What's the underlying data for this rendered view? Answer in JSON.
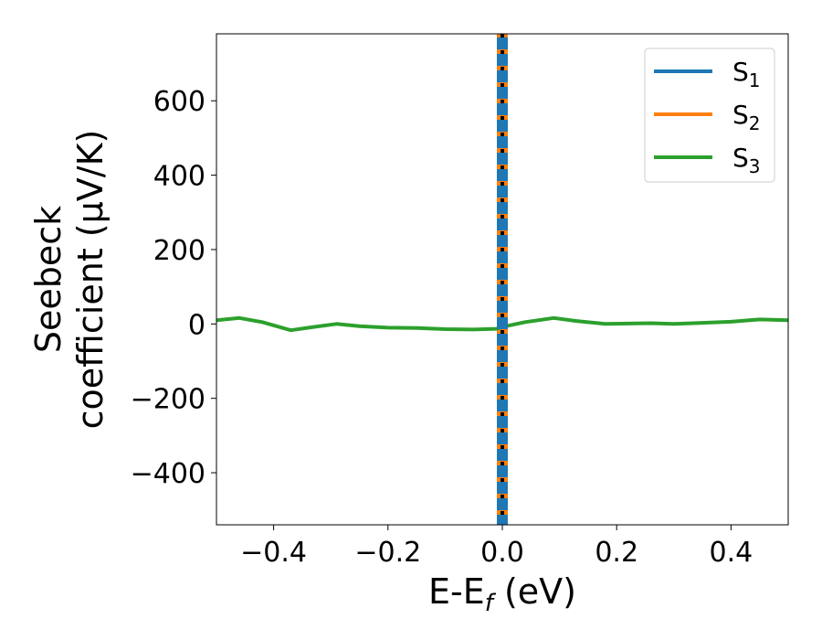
{
  "chart_data": {
    "type": "line",
    "xlabel": "E-E",
    "xlabel_sub": "f",
    "xlabel_unit": " (eV)",
    "ylabel_line1": "Seebeck",
    "ylabel_line2": "coefficient  (μV/K)",
    "xlim": [
      -0.5,
      0.5
    ],
    "ylim": [
      -540,
      780
    ],
    "xticks": [
      -0.4,
      -0.2,
      0.0,
      0.2,
      0.4
    ],
    "xtick_labels": [
      "−0.4",
      "−0.2",
      "0.0",
      "0.2",
      "0.4"
    ],
    "yticks": [
      600,
      400,
      200,
      0,
      -200,
      -400
    ],
    "ytick_labels": [
      "600",
      "400",
      "200",
      "0",
      "−200",
      "−400"
    ],
    "legend_position": "top-right",
    "grid": false,
    "fermi_line": {
      "x": 0.0,
      "style": "black dashed vertical"
    },
    "series": [
      {
        "name": "S",
        "sub": "1",
        "color": "#1f77b4",
        "x": [
          0.0,
          0.0
        ],
        "y": [
          -540,
          780
        ],
        "note_shape": "vertical"
      },
      {
        "name": "S",
        "sub": "2",
        "color": "#ff7f0e",
        "x": [
          0.0,
          0.0
        ],
        "y": [
          -540,
          780
        ],
        "note_shape": "vertical"
      },
      {
        "name": "S",
        "sub": "3",
        "color": "#2ca02c",
        "x": [
          -0.5,
          -0.46,
          -0.42,
          -0.37,
          -0.33,
          -0.29,
          -0.25,
          -0.2,
          -0.15,
          -0.1,
          -0.05,
          -0.01,
          0.0,
          0.04,
          0.09,
          0.13,
          0.18,
          0.22,
          0.26,
          0.3,
          0.35,
          0.4,
          0.45,
          0.5
        ],
        "y": [
          10,
          16,
          5,
          -17,
          -8,
          0,
          -6,
          -10,
          -11,
          -14,
          -15,
          -13,
          -8,
          5,
          16,
          8,
          0,
          1,
          2,
          0,
          3,
          6,
          12,
          10
        ]
      }
    ]
  }
}
